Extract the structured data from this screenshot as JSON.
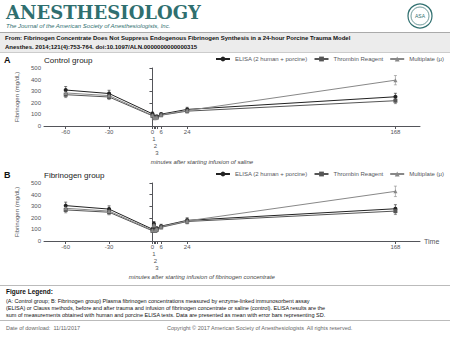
{
  "title": "ANESTHESIOLOGY",
  "subtitle": "The Journal of the American Society of Anesthesiologists, Inc.",
  "annotations": [
    "ASA",
    "From: Fibrinogen Concentrate Does Not Suppress Endogenous Fibrinogen Synthesis in a 24-hour Porcine Trauma Model",
    "Anesthes. 2014;121(4):753-764. doi:10.1097/ALN.0000000000000315",
    "Figure Legend:",
    "(A: Control group; B: Fibrinogen group) Plasma fibrinogen concentrations measured by enzyme-linked immunosorbent assay\n(ELISA) or Clauss methods, before and after trauma and infusion of fibrinogen concentrate or saline (control). ELISA results are the\nsum of measurements obtained with human and porcine ELISA tests. Data are presented as mean with error bars representing SD.",
    "Date of download:  11/11/2017",
    "Copyright © 2017 American Society of Anesthesiologists  All rights reserved."
  ],
  "chart_data": [
    {
      "type": "line",
      "title": "Control group",
      "annotations": [
        "A",
        "minutes after starting infusion of saline"
      ],
      "ylabel": "Fibrinogen (mg/dL)",
      "x": [
        -60,
        -30,
        0,
        1,
        2,
        3,
        6,
        24,
        168
      ],
      "xlim": [
        -75,
        185
      ],
      "xticks": [
        -60,
        -30,
        0,
        1,
        2,
        3,
        6,
        24,
        168
      ],
      "ylim": [
        0,
        500
      ],
      "yticks": [
        0,
        100,
        200,
        300,
        400,
        500
      ],
      "grid": false,
      "legend": "upper right",
      "series": [
        {
          "name": "ELISA (2 human + porcine)",
          "color": "#222222",
          "marker": "circle",
          "values": [
            310,
            280,
            105,
            82,
            76,
            82,
            102,
            143,
            252
          ],
          "error": [
            30,
            28,
            15,
            12,
            10,
            12,
            14,
            18,
            30
          ]
        },
        {
          "name": "Thrombin Reagent",
          "color": "#555555",
          "marker": "square",
          "values": [
            270,
            250,
            88,
            68,
            68,
            74,
            93,
            128,
            218
          ],
          "error": [
            25,
            22,
            12,
            10,
            9,
            10,
            12,
            16,
            25
          ]
        },
        {
          "name": "Multiplate (μ)",
          "color": "#888888",
          "marker": "triangle",
          "values": [
            285,
            262,
            92,
            74,
            70,
            76,
            96,
            133,
            395
          ],
          "error": [
            28,
            25,
            13,
            11,
            9,
            11,
            13,
            17,
            40
          ]
        }
      ]
    },
    {
      "type": "line",
      "title": "Fibrinogen group",
      "annotations": [
        "B",
        "minutes after starting infusion of fibrinogen concentrate"
      ],
      "ylabel": "Fibrinogen (mg/dL)",
      "xlabel": "Time",
      "x": [
        -60,
        -30,
        0,
        1,
        2,
        3,
        6,
        24,
        168
      ],
      "xlim": [
        -75,
        185
      ],
      "xticks": [
        -60,
        -30,
        0,
        1,
        2,
        3,
        6,
        24,
        168
      ],
      "ylim": [
        0,
        500
      ],
      "yticks": [
        0,
        100,
        200,
        300,
        400,
        500
      ],
      "grid": false,
      "legend": "upper right",
      "series": [
        {
          "name": "ELISA (2 human + porcine)",
          "color": "#222222",
          "marker": "circle",
          "values": [
            305,
            275,
            102,
            148,
            98,
            108,
            128,
            178,
            278
          ],
          "error": [
            30,
            28,
            15,
            20,
            14,
            15,
            16,
            22,
            35
          ]
        },
        {
          "name": "Thrombin Reagent",
          "color": "#555555",
          "marker": "square",
          "values": [
            268,
            248,
            88,
            128,
            88,
            98,
            118,
            168,
            258
          ],
          "error": [
            25,
            22,
            12,
            18,
            12,
            13,
            14,
            20,
            30
          ]
        },
        {
          "name": "Multiplate (μ)",
          "color": "#888888",
          "marker": "triangle",
          "values": [
            282,
            258,
            93,
            138,
            93,
            103,
            123,
            173,
            428
          ],
          "error": [
            28,
            25,
            13,
            19,
            13,
            14,
            15,
            21,
            45
          ]
        }
      ]
    }
  ]
}
